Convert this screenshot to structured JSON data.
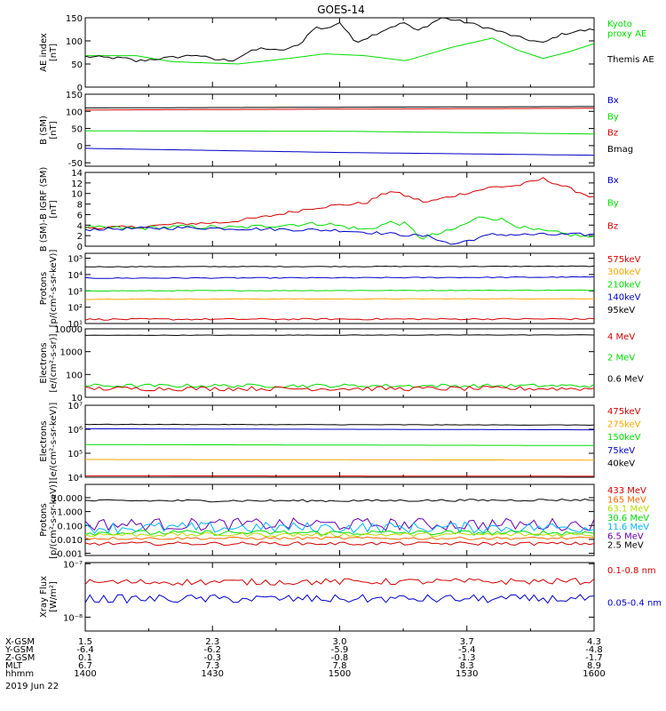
{
  "title": "GOES-14",
  "date_label": "2019 Jun 22",
  "colors": {
    "black": "#000000",
    "red": "#d40000",
    "green": "#00dd00",
    "blue": "#0000c8",
    "orange": "#ffa500",
    "cyan": "#00b4ff",
    "purple": "#6600aa",
    "lime": "#b4dc00",
    "teal": "#00c8a0"
  },
  "xaxis": {
    "rows": [
      {
        "label": "X-GSM",
        "values": [
          "1.5",
          "2.3",
          "3.0",
          "3.7",
          "4.3"
        ]
      },
      {
        "label": "Y-GSM",
        "values": [
          "-6.4",
          "-6.2",
          "-5.9",
          "-5.4",
          "-4.8"
        ]
      },
      {
        "label": "Z-GSM",
        "values": [
          "0.1",
          "-0.3",
          "-0.8",
          "-1.3",
          "-1.7"
        ]
      },
      {
        "label": "MLT",
        "values": [
          "6.7",
          "7.3",
          "7.8",
          "8.3",
          "8.9"
        ]
      },
      {
        "label": "hhmm",
        "values": [
          "1400",
          "1430",
          "1500",
          "1530",
          "1600"
        ]
      }
    ]
  },
  "chart_data": [
    {
      "type": "line",
      "ylabel": "AE index\n[nT]",
      "ylim": [
        0,
        150
      ],
      "yscale": "linear",
      "ticks": [
        {
          "v": 0,
          "t": "0"
        },
        {
          "v": 50,
          "t": "50"
        },
        {
          "v": 100,
          "t": "100"
        },
        {
          "v": 150,
          "t": "150"
        }
      ],
      "legend": [
        {
          "text": "Kyoto\nproxy AE",
          "color": "#00dd00"
        },
        {
          "text": "Themis AE",
          "color": "#000000"
        }
      ],
      "series": [
        {
          "name": "Kyoto proxy AE",
          "color": "#00dd00",
          "x": [
            0,
            0.1,
            0.17,
            0.3,
            0.4,
            0.47,
            0.55,
            0.63,
            0.72,
            0.8,
            0.85,
            0.9,
            0.95,
            1
          ],
          "y": [
            68,
            68,
            55,
            50,
            62,
            72,
            68,
            57,
            86,
            106,
            80,
            62,
            76,
            94
          ]
        },
        {
          "name": "Themis AE",
          "color": "#000000",
          "x": [
            0,
            0.08,
            0.1,
            0.13,
            0.17,
            0.22,
            0.25,
            0.29,
            0.32,
            0.35,
            0.38,
            0.42,
            0.45,
            0.47,
            0.5,
            0.53,
            0.55,
            0.58,
            0.6,
            0.63,
            0.65,
            0.7,
            0.75,
            0.8,
            0.85,
            0.9,
            0.93,
            0.96,
            1
          ],
          "y": [
            66,
            62,
            56,
            60,
            64,
            70,
            60,
            58,
            75,
            85,
            78,
            90,
            130,
            125,
            140,
            98,
            105,
            120,
            130,
            140,
            120,
            150,
            140,
            125,
            108,
            95,
            112,
            120,
            125
          ],
          "noise": 3
        }
      ]
    },
    {
      "type": "line",
      "ylabel": "B (SM)\n[nT]",
      "ylim": [
        -60,
        150
      ],
      "yscale": "linear",
      "ticks": [
        {
          "v": -50,
          "t": "-50"
        },
        {
          "v": 0,
          "t": "0"
        },
        {
          "v": 50,
          "t": "50"
        },
        {
          "v": 100,
          "t": "100"
        },
        {
          "v": 150,
          "t": "150"
        }
      ],
      "legend": [
        {
          "text": "Bx",
          "color": "#0000c8"
        },
        {
          "text": "By",
          "color": "#00dd00"
        },
        {
          "text": "Bz",
          "color": "#d40000"
        },
        {
          "text": "Bmag",
          "color": "#000000"
        }
      ],
      "series": [
        {
          "name": "Bmag",
          "color": "#000000",
          "x": [
            0,
            1
          ],
          "y": [
            110,
            114
          ]
        },
        {
          "name": "Bz",
          "color": "#d40000",
          "x": [
            0,
            1
          ],
          "y": [
            104,
            109
          ]
        },
        {
          "name": "By",
          "color": "#00dd00",
          "x": [
            0,
            0.5,
            1
          ],
          "y": [
            43,
            42,
            34
          ]
        },
        {
          "name": "Bx",
          "color": "#0000c8",
          "x": [
            0,
            0.5,
            1
          ],
          "y": [
            -8,
            -20,
            -28
          ]
        }
      ]
    },
    {
      "type": "line",
      "ylabel": "B (SM)-B IGRF (SM)\n[nT]",
      "ylim": [
        0,
        14
      ],
      "yscale": "linear",
      "ticks": [
        {
          "v": 0,
          "t": "0"
        },
        {
          "v": 2,
          "t": "2"
        },
        {
          "v": 4,
          "t": "4"
        },
        {
          "v": 6,
          "t": "6"
        },
        {
          "v": 8,
          "t": "8"
        },
        {
          "v": 10,
          "t": "10"
        },
        {
          "v": 12,
          "t": "12"
        },
        {
          "v": 14,
          "t": "14"
        }
      ],
      "legend": [
        {
          "text": "Bx",
          "color": "#0000c8"
        },
        {
          "text": "By",
          "color": "#00dd00"
        },
        {
          "text": "Bz",
          "color": "#d40000"
        }
      ],
      "series": [
        {
          "name": "Bz",
          "color": "#d40000",
          "x": [
            0,
            0.1,
            0.18,
            0.27,
            0.35,
            0.45,
            0.5,
            0.55,
            0.6,
            0.67,
            0.72,
            0.8,
            0.85,
            0.9,
            0.95,
            1
          ],
          "y": [
            3.5,
            3.6,
            4.2,
            4.5,
            5.5,
            7.3,
            7.8,
            8.2,
            10.5,
            8.3,
            9.5,
            11.2,
            11.5,
            12.8,
            11,
            9.2
          ],
          "noise": 0.3
        },
        {
          "name": "By",
          "color": "#00dd00",
          "x": [
            0,
            0.1,
            0.2,
            0.3,
            0.4,
            0.47,
            0.55,
            0.6,
            0.63,
            0.66,
            0.72,
            0.78,
            0.82,
            0.87,
            0.92,
            1
          ],
          "y": [
            3.5,
            3.4,
            3.7,
            3.5,
            4.1,
            4.3,
            3.1,
            4.5,
            4.2,
            1.5,
            3.0,
            5.7,
            5.0,
            3.2,
            2.6,
            1.6
          ],
          "noise": 0.4
        },
        {
          "name": "Bx",
          "color": "#0000c8",
          "x": [
            0,
            0.2,
            0.5,
            0.68,
            0.72,
            0.8,
            1
          ],
          "y": [
            3.2,
            3.5,
            3.0,
            1.8,
            0.3,
            2.2,
            2.2
          ],
          "noise": 0.3
        }
      ]
    },
    {
      "type": "line",
      "ylabel": "Protons\n[p/(cm²-s-sr-keV)]",
      "ylim": [
        10,
        200000
      ],
      "yscale": "log",
      "ticks": [
        {
          "v": 10,
          "t": "10¹"
        },
        {
          "v": 100,
          "t": "10²"
        },
        {
          "v": 1000,
          "t": "10³"
        },
        {
          "v": 10000,
          "t": "10⁴"
        },
        {
          "v": 100000,
          "t": "10⁵"
        }
      ],
      "legend": [
        {
          "text": "575keV",
          "color": "#d40000"
        },
        {
          "text": "300keV",
          "color": "#ffa500"
        },
        {
          "text": "210keV",
          "color": "#00dd00"
        },
        {
          "text": "140keV",
          "color": "#0000c8"
        },
        {
          "text": "95keV",
          "color": "#000000"
        }
      ],
      "series": [
        {
          "name": "95keV",
          "color": "#000000",
          "x": [
            0,
            1
          ],
          "y": [
            30000,
            32000
          ],
          "noise": 0.02
        },
        {
          "name": "140keV",
          "color": "#0000c8",
          "x": [
            0,
            0.5,
            1
          ],
          "y": [
            6000,
            6300,
            7000
          ],
          "noise": 0.03
        },
        {
          "name": "210keV",
          "color": "#00dd00",
          "x": [
            0,
            1
          ],
          "y": [
            1000,
            1100
          ],
          "noise": 0.02
        },
        {
          "name": "300keV",
          "color": "#ffa500",
          "x": [
            0,
            1
          ],
          "y": [
            310,
            330
          ],
          "noise": 0.02
        },
        {
          "name": "575keV",
          "color": "#d40000",
          "x": [
            0,
            1
          ],
          "y": [
            18,
            19
          ],
          "noise": 0.05
        }
      ]
    },
    {
      "type": "line",
      "ylabel": "Electrons\n[e/(cm²-s-sr)]",
      "ylim": [
        10,
        10000
      ],
      "yscale": "log",
      "ticks": [
        {
          "v": 10,
          "t": "10"
        },
        {
          "v": 100,
          "t": "100"
        },
        {
          "v": 1000,
          "t": "1000"
        },
        {
          "v": 10000,
          "t": "10000"
        }
      ],
      "legend": [
        {
          "text": "4 MeV",
          "color": "#d40000"
        },
        {
          "text": "2 MeV",
          "color": "#00dd00"
        },
        {
          "text": "0.6 MeV",
          "color": "#000000"
        }
      ],
      "series": [
        {
          "name": "0.6 MeV",
          "color": "#000000",
          "x": [
            0,
            1
          ],
          "y": [
            5200,
            5400
          ],
          "noise": 0.01
        },
        {
          "name": "2 MeV",
          "color": "#00dd00",
          "x": [
            0,
            1
          ],
          "y": [
            32,
            32
          ],
          "noise": 0.08
        },
        {
          "name": "4 MeV",
          "color": "#d40000",
          "x": [
            0,
            1
          ],
          "y": [
            24,
            24
          ],
          "noise": 0.1
        }
      ]
    },
    {
      "type": "line",
      "ylabel": "Electrons\n[e/(cm²-s-sr-keV)]",
      "ylim": [
        10000,
        10000000
      ],
      "yscale": "log",
      "ticks": [
        {
          "v": 10000,
          "t": "10⁴"
        },
        {
          "v": 100000,
          "t": "10⁵"
        },
        {
          "v": 1000000,
          "t": "10⁶"
        },
        {
          "v": 10000000,
          "t": "10⁷"
        }
      ],
      "legend": [
        {
          "text": "475keV",
          "color": "#d40000"
        },
        {
          "text": "275keV",
          "color": "#ffa500"
        },
        {
          "text": "150keV",
          "color": "#00dd00"
        },
        {
          "text": "75keV",
          "color": "#0000c8"
        },
        {
          "text": "40keV",
          "color": "#000000"
        }
      ],
      "series": [
        {
          "name": "40keV",
          "color": "#000000",
          "x": [
            0,
            1
          ],
          "y": [
            1600000,
            1500000
          ],
          "noise": 0.01
        },
        {
          "name": "75keV",
          "color": "#0000c8",
          "x": [
            0,
            1
          ],
          "y": [
            1050000,
            950000
          ]
        },
        {
          "name": "150keV",
          "color": "#00dd00",
          "x": [
            0,
            1
          ],
          "y": [
            230000,
            210000
          ]
        },
        {
          "name": "275keV",
          "color": "#ffa500",
          "x": [
            0,
            1
          ],
          "y": [
            55000,
            52000
          ]
        },
        {
          "name": "475keV",
          "color": "#d40000",
          "x": [
            0,
            1
          ],
          "y": [
            11500,
            11000
          ]
        }
      ]
    },
    {
      "type": "line",
      "ylabel": "Protons\n[p/(cm²-s-sr-keV)]",
      "ylim": [
        0.0007,
        90
      ],
      "yscale": "log",
      "ticks": [
        {
          "v": 0.001,
          "t": "0.001"
        },
        {
          "v": 0.01,
          "t": "0.010"
        },
        {
          "v": 0.1,
          "t": "0.100"
        },
        {
          "v": 1,
          "t": "1.000"
        },
        {
          "v": 10,
          "t": "10.000"
        }
      ],
      "legend": [
        {
          "text": "433 MeV",
          "color": "#d40000"
        },
        {
          "text": "165 MeV",
          "color": "#ff6600"
        },
        {
          "text": "63.1 MeV",
          "color": "#b4dc00"
        },
        {
          "text": "30.6 MeV",
          "color": "#00dd00"
        },
        {
          "text": "11.6 MeV",
          "color": "#00b4ff"
        },
        {
          "text": "6.5 MeV",
          "color": "#6600aa"
        },
        {
          "text": "2.5 MeV",
          "color": "#000000"
        }
      ],
      "series": [
        {
          "name": "2.5 MeV",
          "color": "#000000",
          "x": [
            0,
            0.5,
            1
          ],
          "y": [
            6,
            6,
            7
          ],
          "noise": 0.08
        },
        {
          "name": "6.5 MeV",
          "color": "#6600aa",
          "x": [
            0,
            1
          ],
          "y": [
            0.12,
            0.12
          ],
          "noise": 0.45
        },
        {
          "name": "11.6 MeV",
          "color": "#00b4ff",
          "x": [
            0,
            1
          ],
          "y": [
            0.07,
            0.07
          ],
          "noise": 0.4
        },
        {
          "name": "30.6 MeV",
          "color": "#00dd00",
          "x": [
            0,
            1
          ],
          "y": [
            0.03,
            0.03
          ],
          "noise": 0.18
        },
        {
          "name": "63.1 MeV",
          "color": "#b4dc00",
          "x": [
            0,
            1
          ],
          "y": [
            0.022,
            0.022
          ],
          "noise": 0.15
        },
        {
          "name": "165 MeV",
          "color": "#ff6600",
          "x": [
            0,
            1
          ],
          "y": [
            0.012,
            0.012
          ],
          "noise": 0.1
        },
        {
          "name": "433 MeV",
          "color": "#d40000",
          "x": [
            0,
            1
          ],
          "y": [
            0.005,
            0.005
          ],
          "noise": 0.12
        }
      ]
    },
    {
      "type": "line",
      "ylabel": "Xray Flux\n[W/m²]",
      "ylim": [
        5.5e-09,
        1.05e-07
      ],
      "yscale": "log",
      "ticks": [
        {
          "v": 1e-08,
          "t": "10⁻⁸"
        },
        {
          "v": 1e-07,
          "t": "10⁻⁷"
        }
      ],
      "legend": [
        {
          "text": "0.1-0.8 nm",
          "color": "#d40000"
        },
        {
          "text": "0.05-0.4 nm",
          "color": "#0000c8"
        }
      ],
      "series": [
        {
          "name": "0.1-0.8 nm",
          "color": "#d40000",
          "x": [
            0,
            1
          ],
          "y": [
            4.5e-08,
            4.7e-08
          ],
          "noise": 0.06
        },
        {
          "name": "0.05-0.4 nm",
          "color": "#0000c8",
          "x": [
            0,
            1
          ],
          "y": [
            2.2e-08,
            2.2e-08
          ],
          "noise": 0.08
        }
      ]
    }
  ]
}
